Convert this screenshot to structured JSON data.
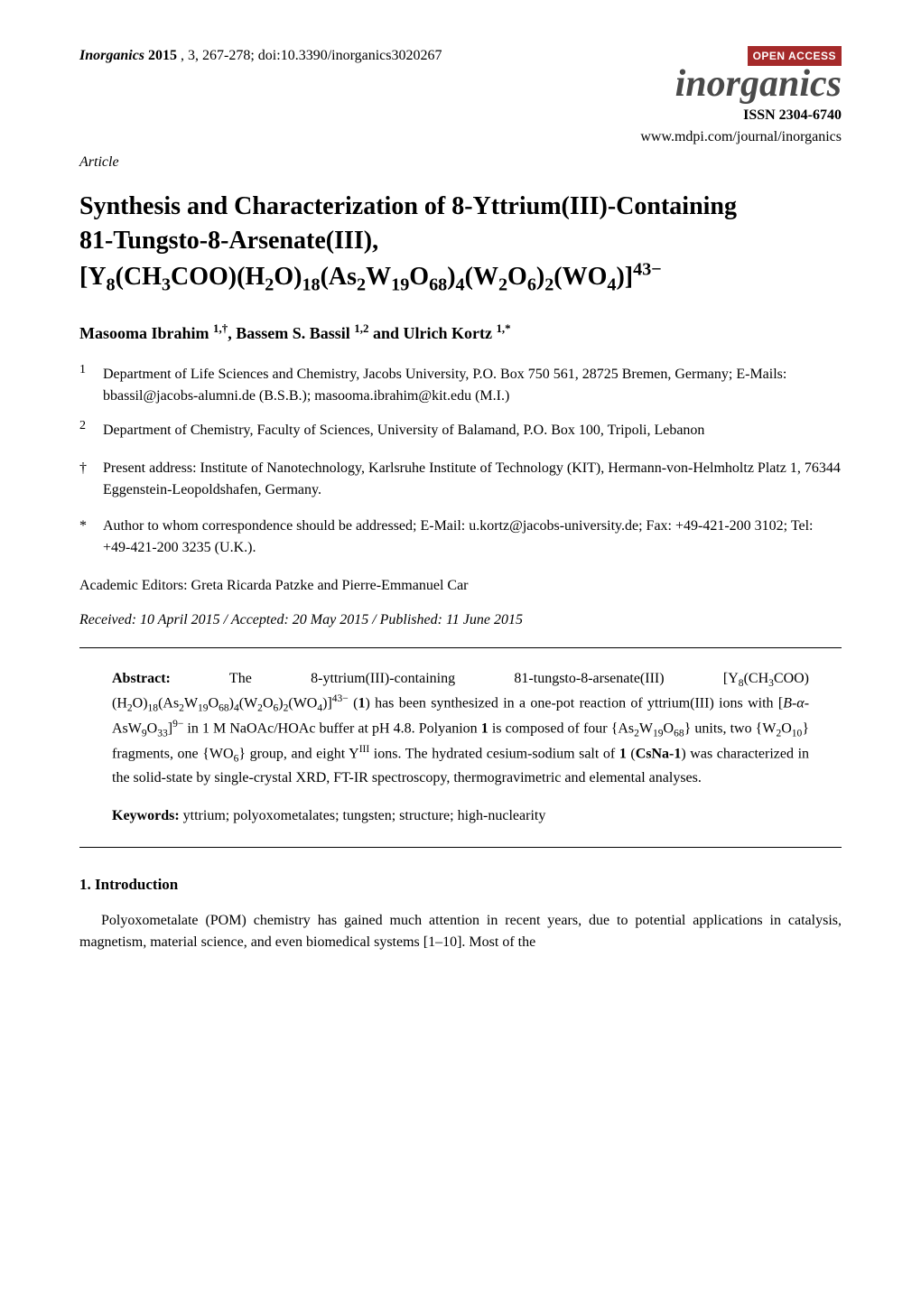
{
  "header": {
    "journal_name": "Inorganics",
    "year": "2015",
    "volume_issue_pages": ", 3, 267-278; doi:10.3390/inorganics3020267",
    "open_access_label": "OPEN ACCESS",
    "brand_name": "inorganics",
    "issn": "ISSN 2304-6740",
    "url": "www.mdpi.com/journal/inorganics",
    "article_type": "Article"
  },
  "title_lines": {
    "l1": "Synthesis and Characterization of 8-Yttrium(III)-Containing",
    "l2": "81-Tungsto-8-Arsenate(III),",
    "l3_pre": "[Y",
    "l3_a": "8",
    "l3_b": "(CH",
    "l3_c": "3",
    "l3_d": "COO)(H",
    "l3_e": "2",
    "l3_f": "O)",
    "l3_g": "18",
    "l3_h": "(As",
    "l3_i": "2",
    "l3_j": "W",
    "l3_k": "19",
    "l3_l": "O",
    "l3_m": "68",
    "l3_n": ")",
    "l3_o": "4",
    "l3_p": "(W",
    "l3_q": "2",
    "l3_r": "O",
    "l3_s": "6",
    "l3_t": ")",
    "l3_u": "2",
    "l3_v": "(WO",
    "l3_w": "4",
    "l3_x": ")]",
    "l3_sup": "43−"
  },
  "authors": {
    "a1_name": "Masooma Ibrahim ",
    "a1_sup": "1,†",
    "sep1": ", ",
    "a2_name": "Bassem S. Bassil ",
    "a2_sup": "1,2",
    "sep2": " and ",
    "a3_name": "Ulrich Kortz ",
    "a3_sup": "1,*"
  },
  "affiliations": [
    {
      "marker": "1",
      "text": "Department of Life Sciences and Chemistry, Jacobs University, P.O. Box 750 561, 28725 Bremen, Germany; E-Mails: bbassil@jacobs-alumni.de (B.S.B.); masooma.ibrahim@kit.edu (M.I.)"
    },
    {
      "marker": "2",
      "text": "Department of Chemistry, Faculty of Sciences, University of Balamand, P.O. Box 100, Tripoli, Lebanon"
    }
  ],
  "notes": [
    {
      "marker": "†",
      "text": "Present address: Institute of Nanotechnology, Karlsruhe Institute of Technology (KIT), Hermann-von-Helmholtz Platz 1, 76344 Eggenstein-Leopoldshafen, Germany."
    },
    {
      "marker": "*",
      "text": "Author to whom correspondence should be addressed; E-Mail: u.kortz@jacobs-university.de; Fax: +49-421-200 3102; Tel: +49-421-200 3235 (U.K.)."
    }
  ],
  "editors": "Academic Editors: Greta Ricarda Patzke and Pierre-Emmanuel Car",
  "dates": "Received: 10 April 2015 / Accepted: 20 May 2015 / Published: 11 June 2015",
  "abstract": {
    "label": "Abstract:",
    "p1a": " The 8-yttrium(III)-containing 81-tungsto-8-arsenate(III) [Y",
    "s1": "8",
    "p1b": "(CH",
    "s2": "3",
    "p1c": "COO)(H",
    "s3": "2",
    "p1d": "O)",
    "s4": "18",
    "p1e": "(As",
    "s5": "2",
    "p1f": "W",
    "s6": "19",
    "p1g": "O",
    "s7": "68",
    "p1h": ")",
    "s8": "4",
    "p1i": "(W",
    "s9": "2",
    "p1j": "O",
    "s10": "6",
    "p1k": ")",
    "s11": "2",
    "p1l": "(WO",
    "s12": "4",
    "p1m": ")]",
    "sup1": "43−",
    "p1n": " (",
    "bold1": "1",
    "p1o": ") has been synthesized in a one-pot reaction of yttrium(III) ions with [",
    "ital1": "B-α",
    "p1p": "-AsW",
    "s13": "9",
    "p1q": "O",
    "s14": "33",
    "p1r": "]",
    "sup2": "9−",
    "p1s": " in 1 M NaOAc/HOAc buffer at pH 4.8. Polyanion ",
    "bold2": "1",
    "p1t": " is composed of four {As",
    "s15": "2",
    "p1u": "W",
    "s16": "19",
    "p1v": "O",
    "s17": "68",
    "p1w": "} units, two {W",
    "s18": "2",
    "p1x": "O",
    "s19": "10",
    "p1y": "} fragments, one {WO",
    "s20": "6",
    "p1z": "} group, and eight Y",
    "sup3": "III",
    "p1aa": " ions. The hydrated cesium-sodium salt of ",
    "bold3": "1",
    "p1ab": " (",
    "bold4": "CsNa-1",
    "p1ac": ") was characterized in the solid-state by single-crystal XRD, FT-IR spectroscopy, thermogravimetric and elemental analyses."
  },
  "keywords": {
    "label": "Keywords:",
    "text": " yttrium; polyoxometalates; tungsten; structure; high-nuclearity"
  },
  "section1": {
    "heading": "1. Introduction",
    "para": "Polyoxometalate (POM) chemistry has gained much attention in recent years, due to potential applications in catalysis, magnetism, material science, and even biomedical systems [1–10]. Most of the"
  },
  "colors": {
    "open_access_bg": "#a52a2a",
    "open_access_fg": "#ffffff",
    "brand_fg": "#4a4a4a",
    "text": "#000000",
    "background": "#ffffff"
  }
}
